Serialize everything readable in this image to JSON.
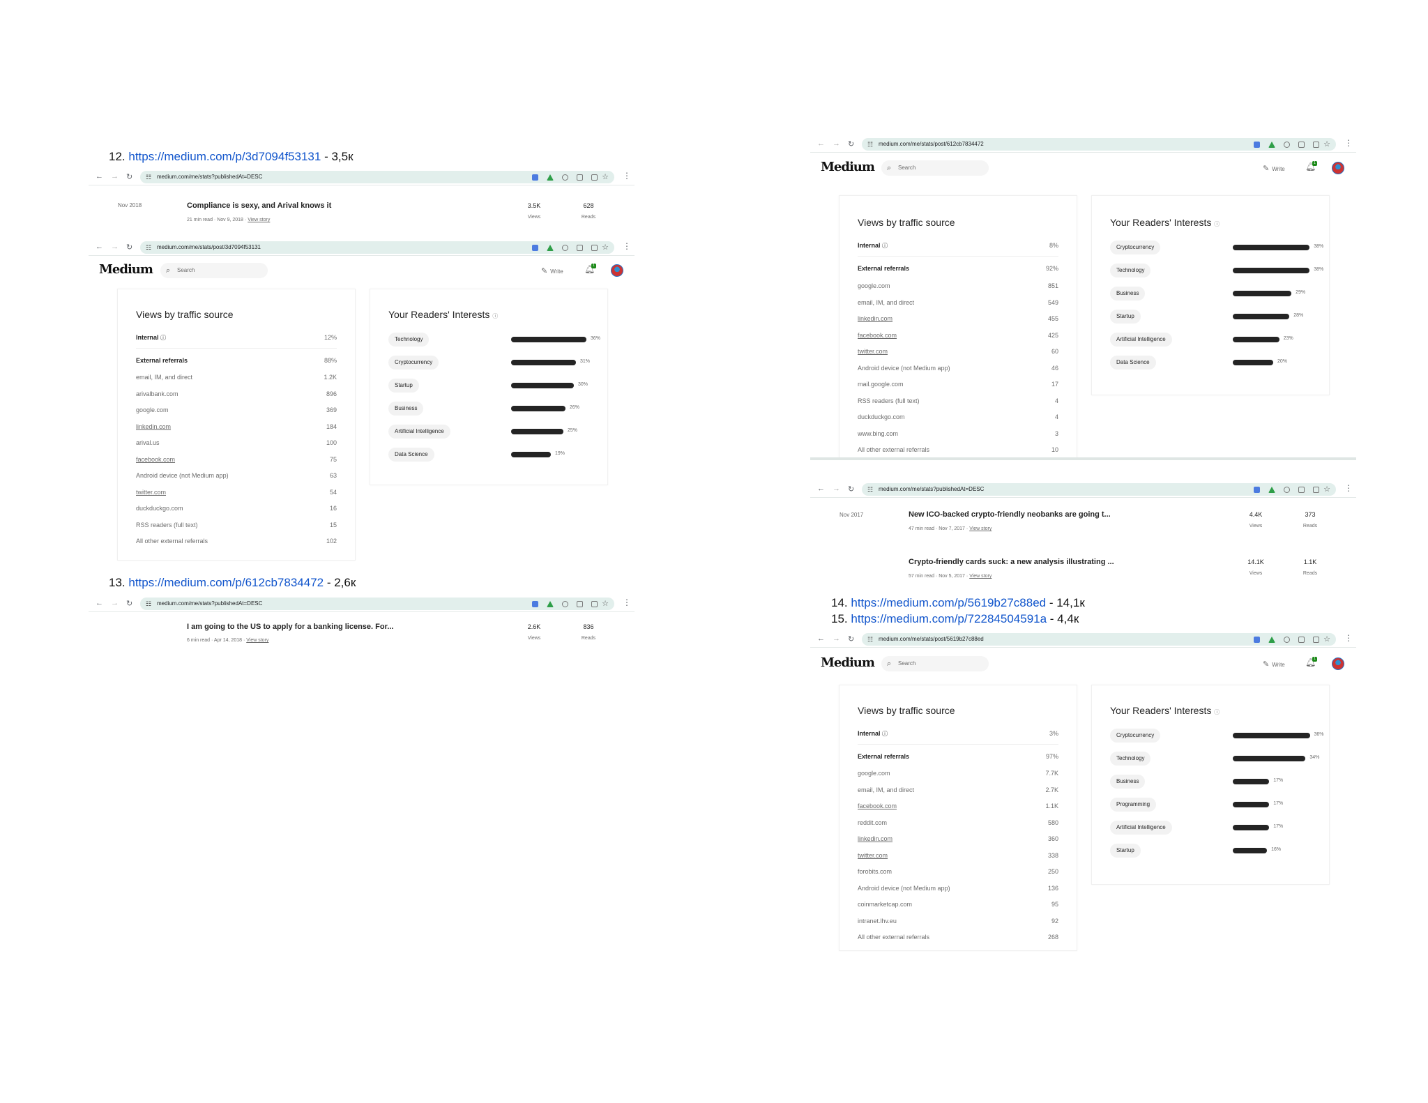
{
  "headings": {
    "h12": {
      "num": "12.",
      "url": "https://medium.com/p/3d7094f53131",
      "suffix": "- 3,5к"
    },
    "h13": {
      "num": "13.",
      "url": "https://medium.com/p/612cb7834472",
      "suffix": "- 2,6к"
    },
    "h14": {
      "num": "14.",
      "url": "https://medium.com/p/5619b27c88ed",
      "suffix": "- 14,1к"
    },
    "h15": {
      "num": "15.",
      "url": "https://medium.com/p/72284504591a",
      "suffix": " - 4,4к"
    }
  },
  "urls": {
    "list": "medium.com/me/stats?publishedAt=DESC",
    "post12": "medium.com/me/stats/post/3d7094f53131",
    "post13": "medium.com/me/stats/post/612cb7834472",
    "post15": "medium.com/me/stats/post/5619b27c88ed"
  },
  "medium": {
    "logo": "Medium",
    "search_placeholder": "Search",
    "write": "Write",
    "notif_count": "1"
  },
  "captions": {
    "views": "Views",
    "reads": "Reads",
    "view_story": "View story"
  },
  "stories": {
    "s12": {
      "date": "Nov 2018",
      "title": "Compliance is sexy, and Arival knows it",
      "read": "21 min read",
      "dot": "·",
      "pub": "Nov 9, 2018",
      "views": "3.5K",
      "reads": "628"
    },
    "s13": {
      "title": "I am going to the US to apply for a banking license. For...",
      "read": "6 min read",
      "pub": "Apr 14, 2018",
      "views": "2.6K",
      "reads": "836"
    },
    "s14a": {
      "date": "Nov 2017",
      "title": "New ICO-backed crypto-friendly neobanks are going t...",
      "read": "47 min read",
      "pub": "Nov 7, 2017",
      "views": "4.4K",
      "reads": "373"
    },
    "s14b": {
      "title": "Crypto-friendly cards suck: a new analysis illustrating ...",
      "read": "57 min read",
      "pub": "Nov 5, 2017",
      "views": "14.1K",
      "reads": "1.1K"
    }
  },
  "panels": {
    "p12": {
      "traffic_title": "Views by traffic source",
      "internal": {
        "label": "Internal",
        "value": "12%"
      },
      "external": {
        "label": "External referrals",
        "value": "88%"
      },
      "sources": [
        {
          "label": "email, IM, and direct",
          "value": "1.2K",
          "link": false
        },
        {
          "label": "arivalbank.com",
          "value": "896",
          "link": false
        },
        {
          "label": "google.com",
          "value": "369",
          "link": false
        },
        {
          "label": "linkedin.com",
          "value": "184",
          "link": true
        },
        {
          "label": "arival.us",
          "value": "100",
          "link": false
        },
        {
          "label": "facebook.com",
          "value": "75",
          "link": true
        },
        {
          "label": "Android device (not Medium app)",
          "value": "63",
          "link": false
        },
        {
          "label": "twitter.com",
          "value": "54",
          "link": true
        },
        {
          "label": "duckduckgo.com",
          "value": "16",
          "link": false
        },
        {
          "label": "RSS readers (full text)",
          "value": "15",
          "link": false
        },
        {
          "label": "All other external referrals",
          "value": "102",
          "link": false
        }
      ],
      "interests_title": "Your Readers' Interests",
      "interests": [
        {
          "label": "Technology",
          "pct": 36,
          "text": "36%"
        },
        {
          "label": "Cryptocurrency",
          "pct": 31,
          "text": "31%"
        },
        {
          "label": "Startup",
          "pct": 30,
          "text": "30%"
        },
        {
          "label": "Business",
          "pct": 26,
          "text": "26%"
        },
        {
          "label": "Artificial Intelligence",
          "pct": 25,
          "text": "25%"
        },
        {
          "label": "Data Science",
          "pct": 19,
          "text": "19%"
        }
      ]
    },
    "p13": {
      "traffic_title": "Views by traffic source",
      "internal": {
        "label": "Internal",
        "value": "8%"
      },
      "external": {
        "label": "External referrals",
        "value": "92%"
      },
      "sources": [
        {
          "label": "google.com",
          "value": "851",
          "link": false
        },
        {
          "label": "email, IM, and direct",
          "value": "549",
          "link": false
        },
        {
          "label": "linkedin.com",
          "value": "455",
          "link": true
        },
        {
          "label": "facebook.com",
          "value": "425",
          "link": true
        },
        {
          "label": "twitter.com",
          "value": "60",
          "link": true
        },
        {
          "label": "Android device (not Medium app)",
          "value": "46",
          "link": false
        },
        {
          "label": "mail.google.com",
          "value": "17",
          "link": false
        },
        {
          "label": "RSS readers (full text)",
          "value": "4",
          "link": false
        },
        {
          "label": "duckduckgo.com",
          "value": "4",
          "link": false
        },
        {
          "label": "www.bing.com",
          "value": "3",
          "link": false
        },
        {
          "label": "All other external referrals",
          "value": "10",
          "link": false
        }
      ],
      "interests_title": "Your Readers' Interests",
      "interests": [
        {
          "label": "Cryptocurrency",
          "pct": 38,
          "text": "38%"
        },
        {
          "label": "Technology",
          "pct": 38,
          "text": "38%"
        },
        {
          "label": "Business",
          "pct": 29,
          "text": "29%"
        },
        {
          "label": "Startup",
          "pct": 28,
          "text": "28%"
        },
        {
          "label": "Artificial Intelligence",
          "pct": 23,
          "text": "23%"
        },
        {
          "label": "Data Science",
          "pct": 20,
          "text": "20%"
        }
      ]
    },
    "p15": {
      "traffic_title": "Views by traffic source",
      "internal": {
        "label": "Internal",
        "value": "3%"
      },
      "external": {
        "label": "External referrals",
        "value": "97%"
      },
      "sources": [
        {
          "label": "google.com",
          "value": "7.7K",
          "link": false
        },
        {
          "label": "email, IM, and direct",
          "value": "2.7K",
          "link": false
        },
        {
          "label": "facebook.com",
          "value": "1.1K",
          "link": true
        },
        {
          "label": "reddit.com",
          "value": "580",
          "link": false
        },
        {
          "label": "linkedin.com",
          "value": "360",
          "link": true
        },
        {
          "label": "twitter.com",
          "value": "338",
          "link": true
        },
        {
          "label": "forobits.com",
          "value": "250",
          "link": false
        },
        {
          "label": "Android device (not Medium app)",
          "value": "136",
          "link": false
        },
        {
          "label": "coinmarketcap.com",
          "value": "95",
          "link": false
        },
        {
          "label": "intranet.lhv.eu",
          "value": "92",
          "link": false
        },
        {
          "label": "All other external referrals",
          "value": "268",
          "link": false
        }
      ],
      "interests_title": "Your Readers' Interests",
      "interests": [
        {
          "label": "Cryptocurrency",
          "pct": 36,
          "text": "36%"
        },
        {
          "label": "Technology",
          "pct": 34,
          "text": "34%"
        },
        {
          "label": "Business",
          "pct": 17,
          "text": "17%"
        },
        {
          "label": "Programming",
          "pct": 17,
          "text": "17%"
        },
        {
          "label": "Artificial Intelligence",
          "pct": 17,
          "text": "17%"
        },
        {
          "label": "Startup",
          "pct": 16,
          "text": "16%"
        }
      ]
    }
  }
}
